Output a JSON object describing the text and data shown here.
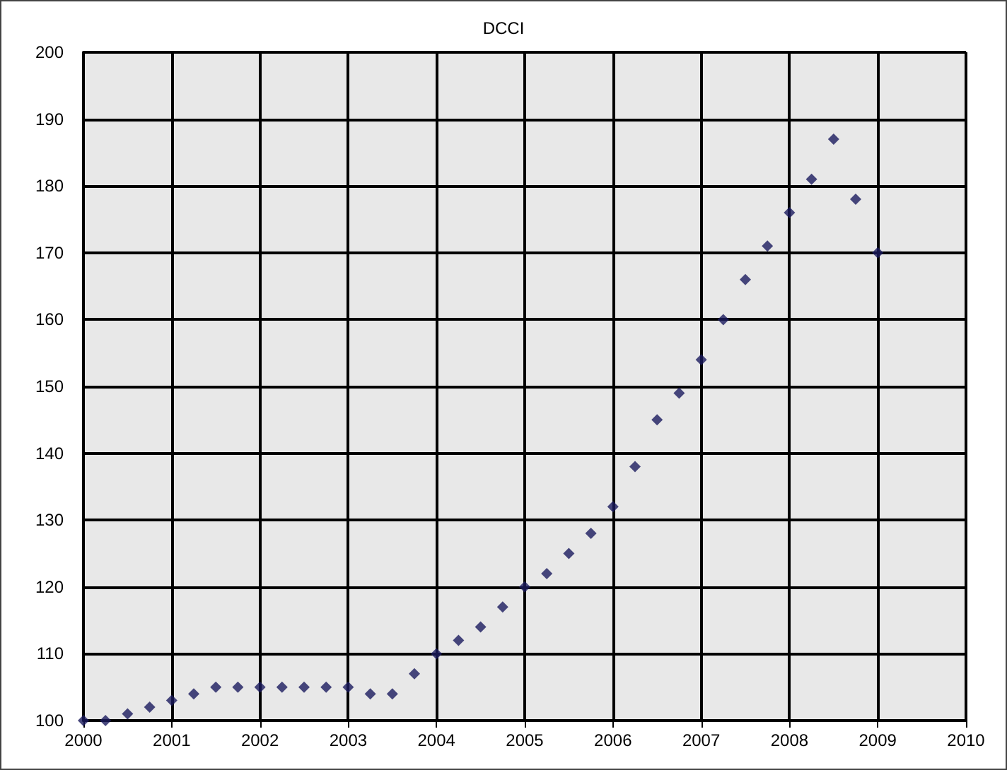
{
  "chart_data": {
    "type": "scatter",
    "title": "DCCI",
    "x": [
      2000,
      2000.25,
      2000.5,
      2000.75,
      2001,
      2001.25,
      2001.5,
      2001.75,
      2002,
      2002.25,
      2002.5,
      2002.75,
      2003,
      2003.25,
      2003.5,
      2003.75,
      2004,
      2004.25,
      2004.5,
      2004.75,
      2005,
      2005.25,
      2005.5,
      2005.75,
      2006,
      2006.25,
      2006.5,
      2006.75,
      2007,
      2007.25,
      2007.5,
      2007.75,
      2008,
      2008.25,
      2008.5,
      2008.75,
      2009
    ],
    "series": [
      {
        "color": "#1a1a5e",
        "values": [
          100,
          100,
          101,
          102,
          103,
          104,
          105,
          105,
          105,
          105,
          105,
          105,
          105,
          104,
          104,
          107,
          110,
          112,
          114,
          117,
          120,
          122,
          125,
          128,
          132,
          138,
          145,
          149,
          154,
          160,
          166,
          171,
          176,
          181,
          187,
          178,
          170
        ]
      }
    ],
    "xlim": [
      2000,
      2010
    ],
    "xticks": [
      2000,
      2001,
      2002,
      2003,
      2004,
      2005,
      2006,
      2007,
      2008,
      2009,
      2010
    ],
    "ylim": [
      100,
      200
    ],
    "yticks": [
      100,
      110,
      120,
      130,
      140,
      150,
      160,
      170,
      180,
      190,
      200
    ],
    "grid": true,
    "marker": "diamond"
  }
}
